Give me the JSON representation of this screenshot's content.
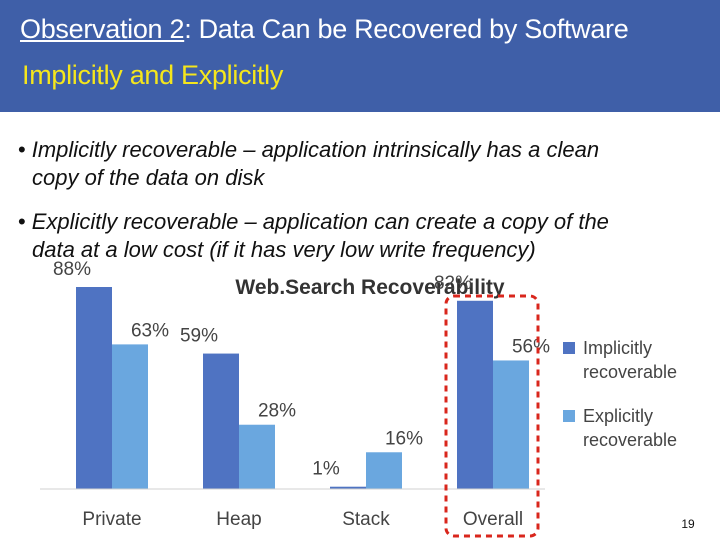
{
  "slide": {
    "title_prefix": "Observation 2",
    "title_rest": ": Data Can be Recovered by Software",
    "title_line2": "Implicitly and Explicitly",
    "bullets": [
      {
        "line1": "Implicitly recoverable – application intrinsically has a clean",
        "line2": "copy of the data on disk"
      },
      {
        "line1": "Explicitly recoverable – application can create a copy of the",
        "line2": "data at a low cost (if it has very low write frequency)"
      }
    ],
    "page_number": "19"
  },
  "colors": {
    "title_bg": "#3f5fa8",
    "title_highlight": "#f5e61c",
    "implicit": "#4f73c2",
    "explicit": "#6aa7df",
    "highlight_box": "#d9261c"
  },
  "chart_data": {
    "type": "bar",
    "title": "Web.Search Recoverability",
    "categories": [
      "Private",
      "Heap",
      "Stack",
      "Overall"
    ],
    "series": [
      {
        "name": "Implicitly recoverable",
        "values": [
          88,
          59,
          1,
          82
        ],
        "labels": [
          "88%",
          "59%",
          "1%",
          "82%"
        ]
      },
      {
        "name": "Explicitly recoverable",
        "values": [
          63,
          28,
          16,
          56
        ],
        "labels": [
          "63%",
          "28%",
          "16%",
          "56%"
        ]
      }
    ],
    "ylim": [
      0,
      100
    ],
    "unit": "%",
    "legend_position": "right",
    "highlighted_category": "Overall"
  }
}
